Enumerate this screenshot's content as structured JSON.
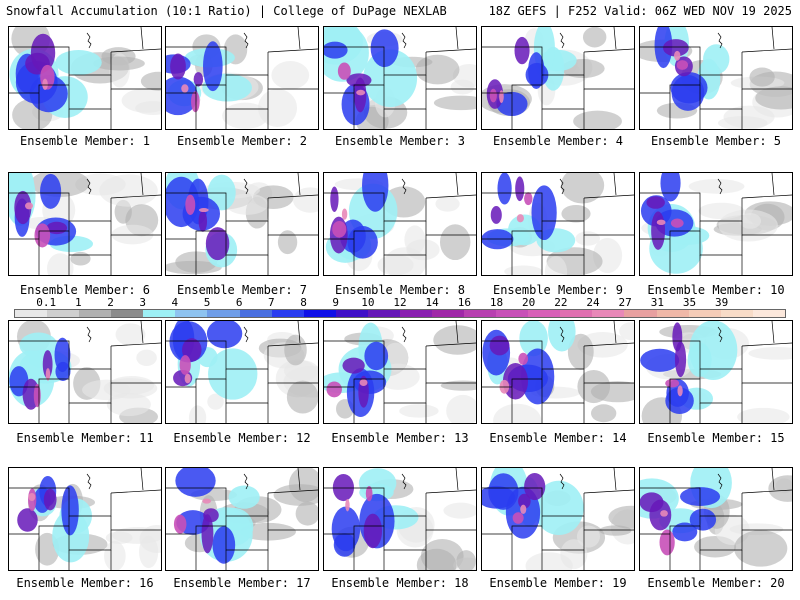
{
  "header": {
    "left": "Snowfall Accumulation (10:1 Ratio) | College of DuPage NEXLAB",
    "right": "18Z GEFS | F252 Valid: 06Z WED NOV 19 2025"
  },
  "caption_prefix": "Ensemble Member: ",
  "members": [
    "1",
    "2",
    "3",
    "4",
    "5",
    "6",
    "7",
    "8",
    "9",
    "10",
    "11",
    "12",
    "13",
    "14",
    "15",
    "16",
    "17",
    "18",
    "19",
    "20"
  ],
  "colorbar": {
    "labels": [
      "0.1",
      "1",
      "2",
      "3",
      "4",
      "5",
      "6",
      "7",
      "8",
      "9",
      "10",
      "12",
      "14",
      "16",
      "18",
      "20",
      "22",
      "24",
      "27",
      "31",
      "35",
      "39"
    ],
    "colors": [
      "#e8e8e8",
      "#cfcfcf",
      "#b0b0b0",
      "#8c8c8c",
      "#9ef0f5",
      "#8ec3f0",
      "#6f9de8",
      "#4a6fe0",
      "#2a3cf0",
      "#1010e8",
      "#4010c8",
      "#6618b8",
      "#8a20b0",
      "#a028a8",
      "#b840b0",
      "#c850b8",
      "#d860b8",
      "#e070b0",
      "#e888b8",
      "#e8a0a0",
      "#f0b8a8",
      "#f5ccb8",
      "#f8dcc8",
      "#fce8dc"
    ]
  },
  "colors": {
    "light_gray": "#e8e8e8",
    "mid_gray": "#b0b0b0",
    "cyan": "#9ef0f5",
    "blue": "#2a3cf0",
    "purple": "#6618b8",
    "magenta": "#c850b8",
    "pink": "#e888b8",
    "peach": "#f5ccb8"
  }
}
